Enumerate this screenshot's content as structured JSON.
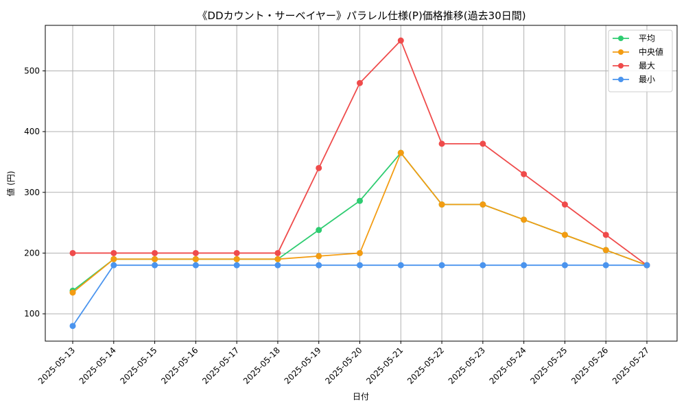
{
  "chart_data": {
    "type": "line",
    "title": "《DDカウント・サーベイヤー》パラレル仕様(P)価格推移(過去30日間)",
    "xlabel": "日付",
    "ylabel": "値 (円)",
    "ylim": [
      55,
      575
    ],
    "yticks": [
      100,
      200,
      300,
      400,
      500
    ],
    "grid": true,
    "legend_position": "top-right",
    "categories": [
      "2025-05-13",
      "2025-05-14",
      "2025-05-15",
      "2025-05-16",
      "2025-05-17",
      "2025-05-18",
      "2025-05-19",
      "2025-05-20",
      "2025-05-21",
      "2025-05-22",
      "2025-05-23",
      "2025-05-24",
      "2025-05-25",
      "2025-05-26",
      "2025-05-27"
    ],
    "series": [
      {
        "name": "平均",
        "color": "#2ecc71",
        "values": [
          138,
          190,
          190,
          190,
          190,
          190,
          238,
          286,
          365,
          280,
          280,
          255,
          230,
          205,
          180
        ]
      },
      {
        "name": "中央値",
        "color": "#f39c12",
        "values": [
          135,
          190,
          190,
          190,
          190,
          190,
          195,
          200,
          365,
          280,
          280,
          255,
          230,
          205,
          180
        ]
      },
      {
        "name": "最大",
        "color": "#ef4b4b",
        "values": [
          200,
          200,
          200,
          200,
          200,
          200,
          340,
          480,
          550,
          380,
          380,
          330,
          280,
          230,
          180
        ]
      },
      {
        "name": "最小",
        "color": "#4a94ee",
        "values": [
          80,
          180,
          180,
          180,
          180,
          180,
          180,
          180,
          180,
          180,
          180,
          180,
          180,
          180,
          180
        ]
      }
    ]
  }
}
